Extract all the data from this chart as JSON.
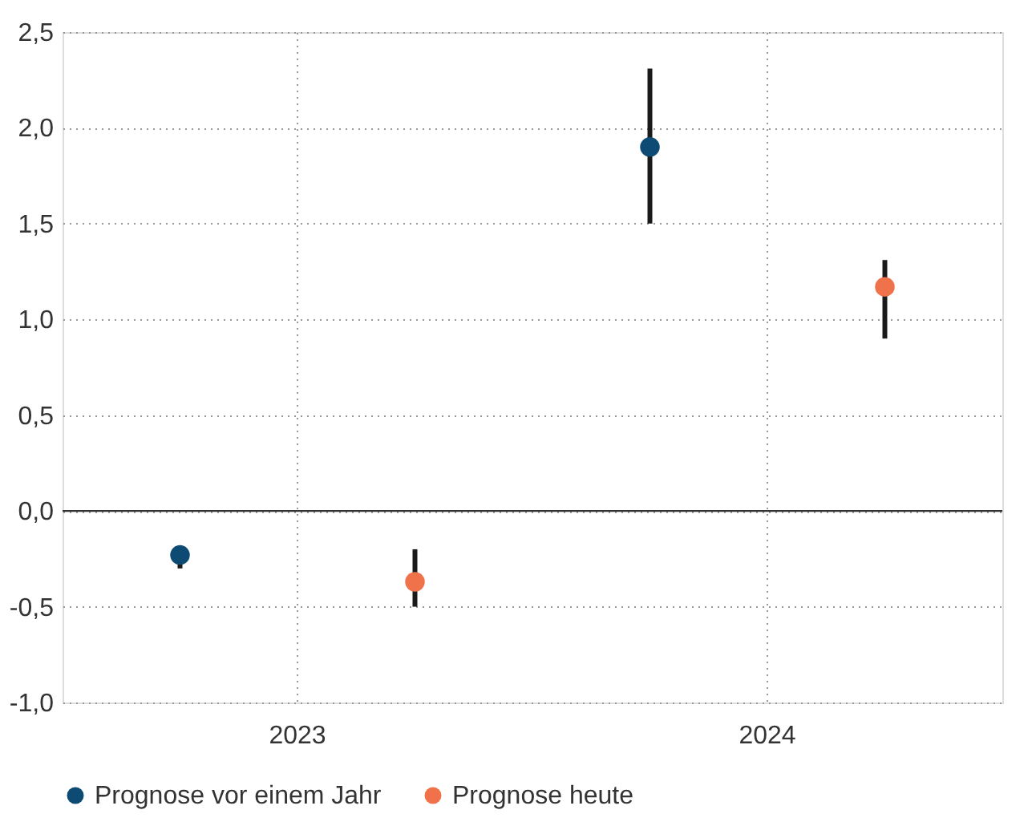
{
  "chart_data": {
    "type": "scatter",
    "categories": [
      "2023",
      "2024"
    ],
    "series": [
      {
        "name": "Prognose vor einem Jahr",
        "color": "#0d4a74",
        "values": [
          -0.23,
          1.9
        ],
        "errors": [
          [
            -0.3,
            -0.23
          ],
          [
            1.5,
            2.31
          ]
        ]
      },
      {
        "name": "Prognose heute",
        "color": "#f0724a",
        "values": [
          -0.37,
          1.17
        ],
        "errors": [
          [
            -0.5,
            -0.2
          ],
          [
            0.9,
            1.31
          ]
        ]
      }
    ],
    "ylim": [
      -1.0,
      2.5
    ],
    "yticks": [
      {
        "value": -1.0,
        "label": "-1,0"
      },
      {
        "value": -0.5,
        "label": "-0,5"
      },
      {
        "value": 0.0,
        "label": "0,0"
      },
      {
        "value": 0.5,
        "label": "0,5"
      },
      {
        "value": 1.0,
        "label": "1,0"
      },
      {
        "value": 1.5,
        "label": "1,5"
      },
      {
        "value": 2.0,
        "label": "2,0"
      },
      {
        "value": 2.5,
        "label": "2,5"
      }
    ],
    "ref_lines": [
      {
        "axis": "y",
        "value": 0.0,
        "label": null,
        "color": "#333333",
        "line_style": "solid"
      }
    ],
    "grid": true,
    "legend": "bottom left",
    "marker": "circle"
  }
}
